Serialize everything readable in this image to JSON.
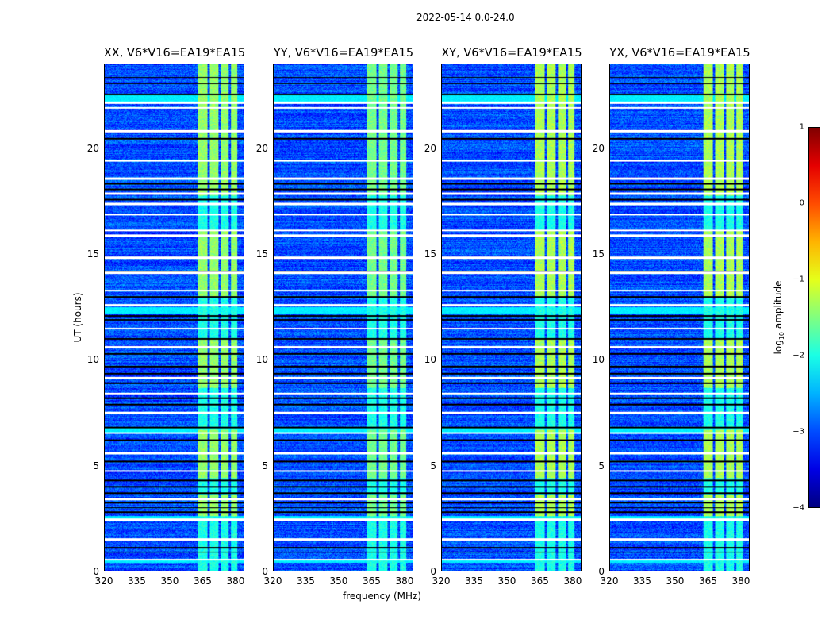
{
  "figure_title": "2022-05-14 0.0-24.0",
  "chart_data": {
    "type": "heatmap",
    "title": "2022-05-14 0.0-24.0",
    "xlabel": "frequency (MHz)",
    "ylabel": "UT (hours)",
    "xlim": [
      320,
      384
    ],
    "ylim": [
      0,
      24
    ],
    "xticks": [
      "320",
      "335",
      "350",
      "365",
      "380"
    ],
    "yticks": [
      "0",
      "5",
      "10",
      "15",
      "20"
    ],
    "panels": [
      {
        "title": "XX, V6*V16=EA19*EA15",
        "rfi_strength": 1.0
      },
      {
        "title": "YY, V6*V16=EA19*EA15",
        "rfi_strength": 1.15
      },
      {
        "title": "XY, V6*V16=EA19*EA15",
        "rfi_strength": 0.9
      },
      {
        "title": "YX, V6*V16=EA19*EA15",
        "rfi_strength": 0.9
      }
    ],
    "colorbar": {
      "label": "log10 amplitude",
      "label_main": "log",
      "label_sub": "10",
      "label_rest": " amplitude",
      "range": [
        -4,
        1
      ],
      "ticks": [
        "1",
        "0",
        "−1",
        "−2",
        "−3",
        "−4"
      ],
      "colormap": "jet"
    },
    "background_level": -3.0,
    "rfi_channels_mhz": [
      [
        363,
        367.3
      ],
      [
        368.3,
        372.3
      ],
      [
        373.3,
        377
      ],
      [
        378,
        381
      ]
    ],
    "rfi_active_hours": [
      [
        2.6,
        3.6
      ],
      [
        4.4,
        6.7
      ],
      [
        8.7,
        11.0
      ],
      [
        13.0,
        16.2
      ],
      [
        17.8,
        24.0
      ]
    ],
    "flagged_white_hours": [
      0.55,
      1.5,
      2.45,
      3.4,
      4.75,
      5.6,
      6.55,
      7.5,
      8.4,
      9.15,
      10.6,
      11.5,
      12.6,
      13.3,
      14.15,
      14.85,
      15.9,
      16.15,
      16.9,
      17.4,
      17.9,
      18.6,
      19.45,
      20.85,
      21.95,
      22.2
    ],
    "flagged_black_hours": [
      0.9,
      1.1,
      2.8,
      3.0,
      3.25,
      3.7,
      4.0,
      4.3,
      5.2,
      6.2,
      6.8,
      7.9,
      8.2,
      8.9,
      9.35,
      9.7,
      10.3,
      11.0,
      11.9,
      12.1,
      13.0,
      14.2,
      17.6,
      18.1,
      18.35,
      20.5,
      22.6,
      23.1,
      23.4
    ],
    "bright_band_hours": [
      [
        0.4,
        0.6
      ],
      [
        2.4,
        2.6
      ],
      [
        6.6,
        6.8
      ],
      [
        12.2,
        12.5
      ],
      [
        22.2,
        22.6
      ]
    ]
  }
}
